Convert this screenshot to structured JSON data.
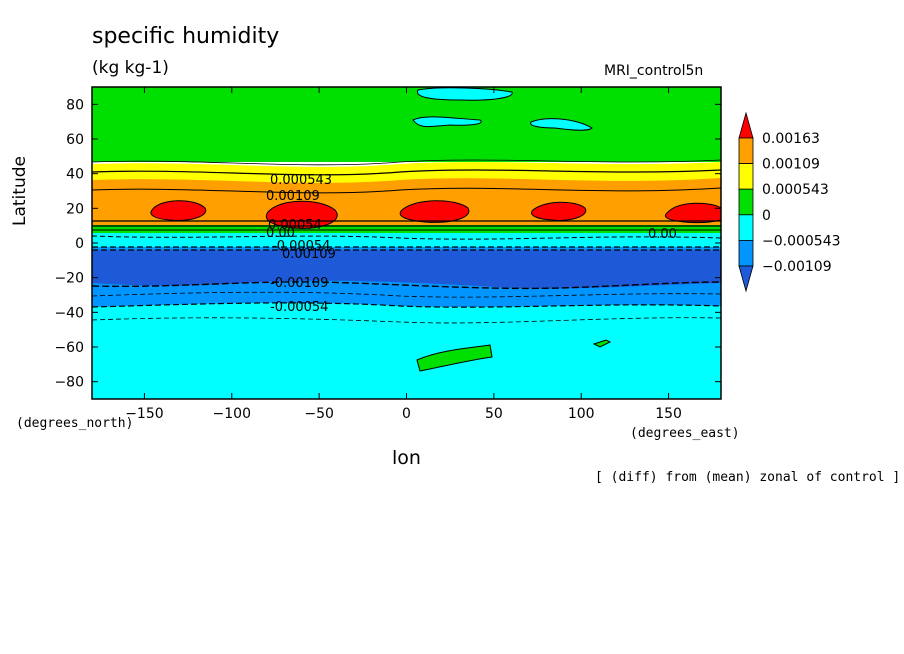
{
  "chart_data": {
    "type": "heatmap",
    "title": "specific humidity",
    "subtitle": "(kg kg-1)",
    "run_label": "MRI_control5n",
    "xlabel": "lon",
    "ylabel": "Latitude",
    "x_unit": "(degrees_east)",
    "y_unit": "(degrees_north)",
    "note": "[ (diff) from (mean) zonal of control ]",
    "xlim": [
      -180,
      180
    ],
    "ylim": [
      -90,
      90
    ],
    "x_ticks": [
      -150,
      -100,
      -50,
      0,
      50,
      100,
      150
    ],
    "y_ticks": [
      80,
      60,
      40,
      20,
      0,
      -20,
      -40,
      -60,
      -80
    ],
    "colorbar": {
      "labels": [
        "0.00163",
        "0.00109",
        "0.000543",
        "0",
        "-0.000543",
        "-0.00109"
      ],
      "colors": [
        "#ff0000",
        "#ff9f00",
        "#ffff00",
        "#00e000",
        "#00ffff",
        "#0095ff",
        "#1e5ad8"
      ]
    },
    "bands": [
      {
        "lat_from": 90,
        "lat_to": 45,
        "level": "0 to 0.000543"
      },
      {
        "lat_from": 45,
        "lat_to": 38,
        "level": "0.000543 to 0.00109"
      },
      {
        "lat_from": 38,
        "lat_to": 28,
        "level": "0.00109 to 0.00163"
      },
      {
        "lat_from": 28,
        "lat_to": 7,
        "level": "0.00109 to 0.00163"
      },
      {
        "lat_from": 7,
        "lat_to": 2,
        "level": "0 to 0.000543"
      },
      {
        "lat_from": 2,
        "lat_to": -5,
        "level": "-0.000543 to 0"
      },
      {
        "lat_from": -5,
        "lat_to": -21,
        "level": "< -0.00109"
      },
      {
        "lat_from": -21,
        "lat_to": -35,
        "level": "-0.00109 to -0.000543"
      },
      {
        "lat_from": -35,
        "lat_to": -90,
        "level": "-0.000543 to 0"
      }
    ],
    "contour_labels": [
      "0.000543",
      "0.00109",
      "0.00054",
      "0.00109",
      "-0.00054",
      "-0.00109",
      "0.00",
      "0.00"
    ]
  }
}
